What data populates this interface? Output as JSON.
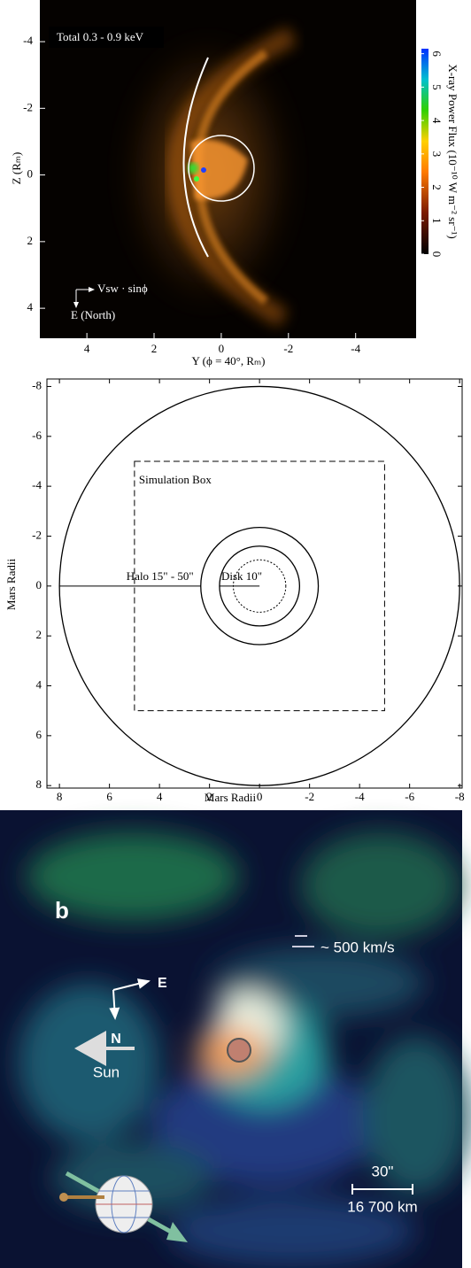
{
  "chart_data": [
    {
      "type": "heatmap",
      "title": "Total 0.3 - 0.9 keV",
      "xlabel": "Y (ϕ = 40°, Rₘ)",
      "ylabel": "Z (Rₘ)",
      "annotations": [
        "Vsw · sinϕ",
        "E (North)"
      ],
      "xlim": [
        5.4,
        -5.8
      ],
      "ylim": [
        -5.25,
        4.9
      ],
      "xticks": [
        4,
        2,
        0,
        -2,
        -4
      ],
      "yticks": [
        -4,
        -2,
        0,
        2,
        4
      ],
      "colorbar": {
        "label": "X-ray Power Flux (10⁻¹⁰ W m⁻² sr⁻¹)",
        "lim": [
          0,
          6.15
        ],
        "ticks": [
          0,
          1,
          2,
          3,
          4,
          5,
          6
        ]
      }
    },
    {
      "type": "circles",
      "xlabel": "Mars Radii",
      "ylabel": "Mars Radii",
      "annotations": [
        "Simulation Box",
        "Halo 15\" - 50\"",
        "Disk 10\""
      ],
      "xlim": [
        8.5,
        -8.1
      ],
      "ylim": [
        -8.3,
        8.1
      ],
      "xticks": [
        8,
        6,
        4,
        2,
        0,
        -2,
        -4,
        -6,
        -8
      ],
      "yticks": [
        -8,
        -6,
        -4,
        -2,
        0,
        2,
        4,
        6,
        8
      ],
      "circles": [
        8,
        2.35,
        1.6
      ],
      "dotted_circle": 1.05,
      "box": 5
    }
  ],
  "image": {
    "label": "b",
    "compass": [
      "E",
      "N"
    ],
    "velocity": "~ 500 km/s",
    "sun": "Sun",
    "scale": [
      "30\"",
      "16 700 km"
    ]
  }
}
